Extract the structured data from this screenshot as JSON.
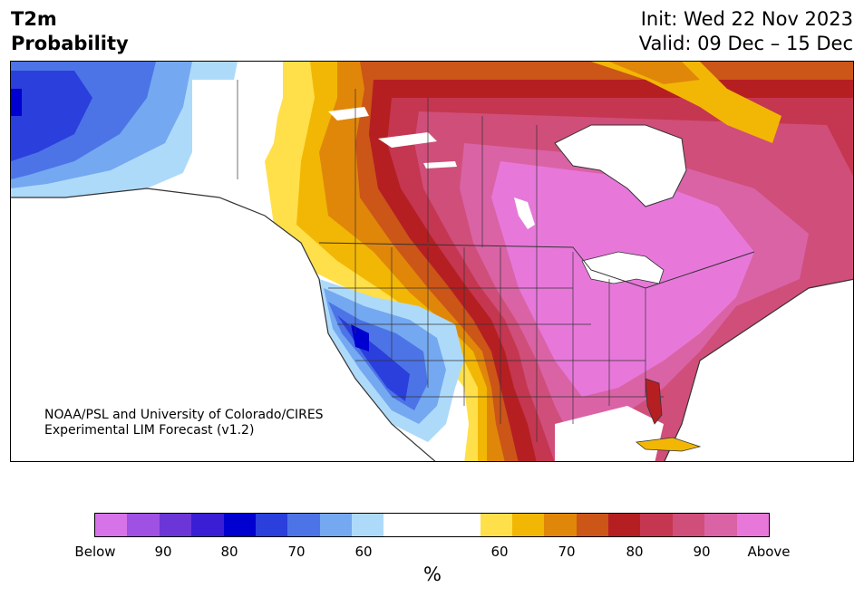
{
  "title": {
    "line1": "T2m",
    "line2": "Probability",
    "init": "Init: Wed 22 Nov 2023",
    "valid": "Valid: 09 Dec – 15 Dec"
  },
  "map": {
    "credit_line1": "NOAA/PSL and University of Colorado/CIRES",
    "credit_line2": "Experimental LIM Forecast (v1.2)",
    "regions": [
      {
        "name": "Northwest Canada / Alaska",
        "category": "below",
        "level": "70-80"
      },
      {
        "name": "Pacific Southwest US",
        "category": "below",
        "level": "60-70"
      },
      {
        "name": "Canadian Prairies edge",
        "category": "above",
        "level": "60-70"
      },
      {
        "name": "Central and Eastern US",
        "category": "above",
        "level": "90-100"
      },
      {
        "name": "Eastern Canada / Quebec",
        "category": "above",
        "level": "80-90"
      }
    ]
  },
  "colorbar": {
    "unit": "%",
    "bins": [
      "#d673e8",
      "#9e51e2",
      "#6b35d8",
      "#3a1ed6",
      "#0000d0",
      "#2a3fdc",
      "#4c74e6",
      "#74a8f0",
      "#aedafa",
      "#ffffff",
      "#ffe04a",
      "#f2b705",
      "#e0870a",
      "#cc5518",
      "#b51f22",
      "#c53650",
      "#d04e7a",
      "#da63a6",
      "#e778da"
    ],
    "ticks": [
      "Below",
      "90",
      "80",
      "70",
      "60",
      "60",
      "70",
      "80",
      "90",
      "Above"
    ]
  }
}
